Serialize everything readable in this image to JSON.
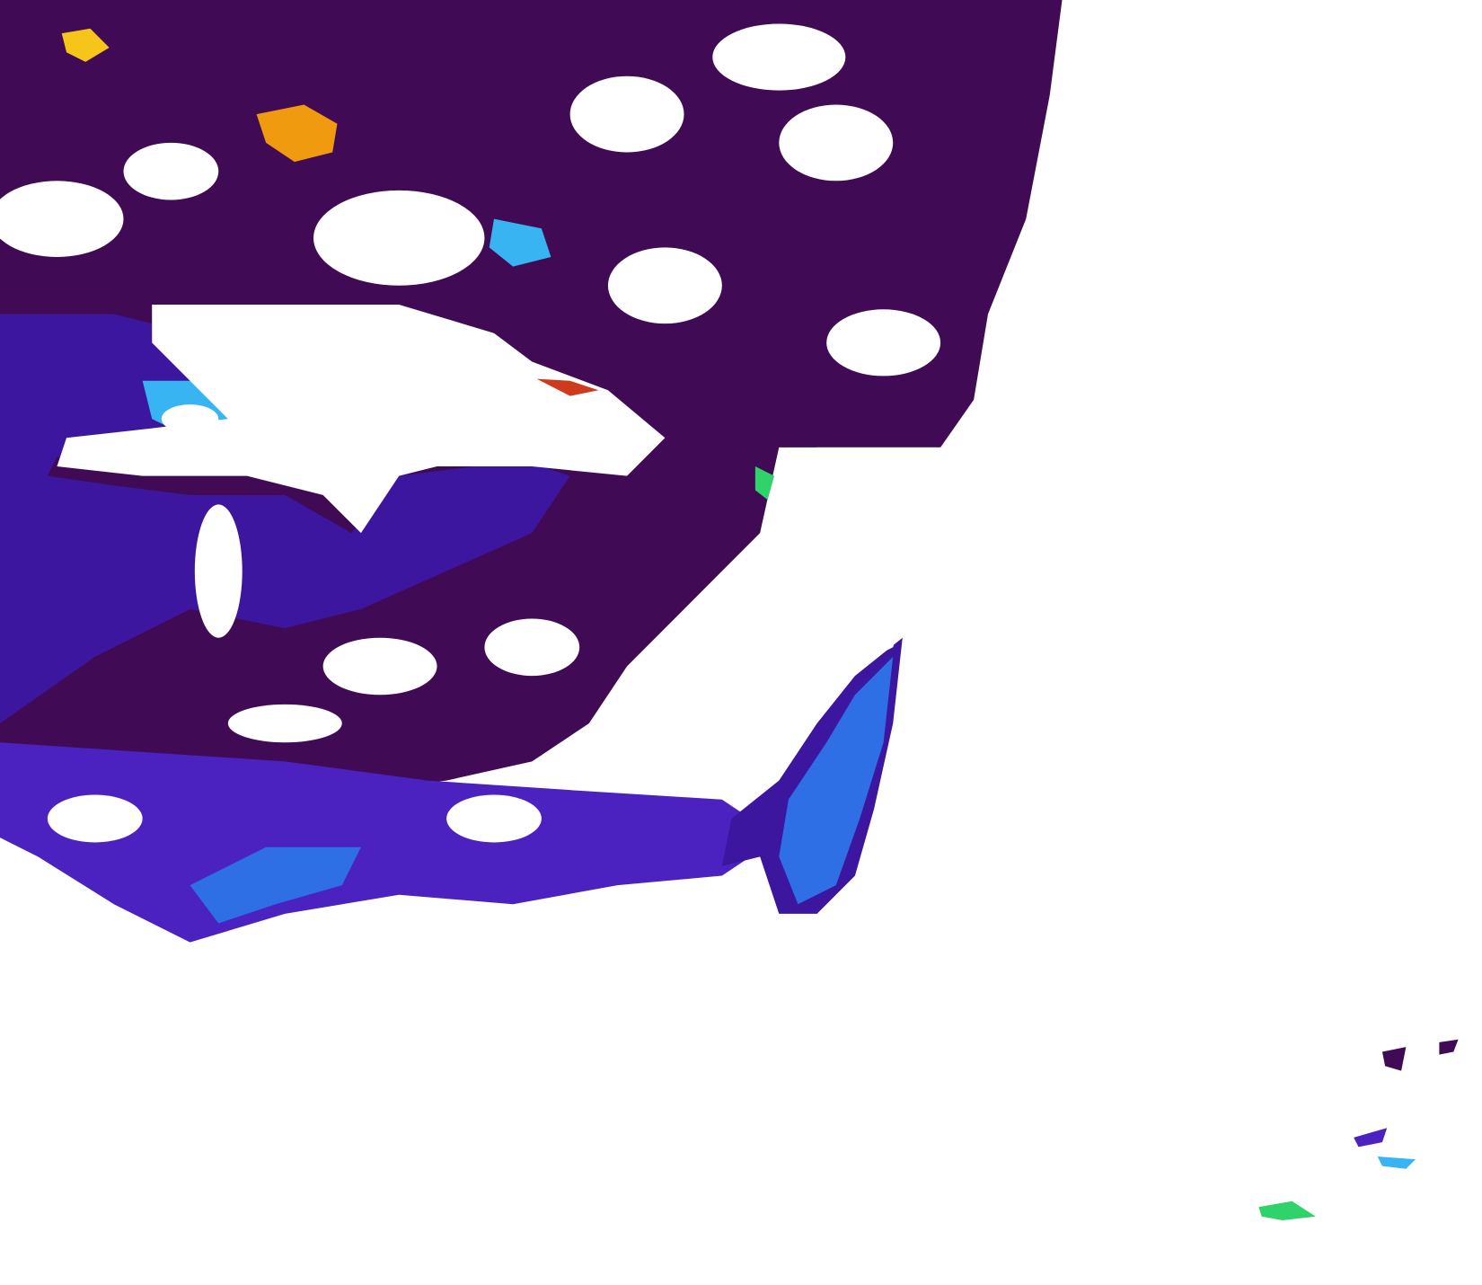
{
  "map": {
    "colors": {
      "background": "#ffffff",
      "dark": "#410a55",
      "indigo": "#3c169e",
      "violet": "#4b22c0",
      "blue": "#2f6fe6",
      "cyan": "#38b4f2",
      "green": "#2fd36a",
      "yellow": "#f6c51a",
      "orange": "#f09a10",
      "red": "#d03a1c"
    },
    "features": [
      "dark-land-mass",
      "indigo-water",
      "blue-bloom",
      "cloud-gaps",
      "warm-patches",
      "island-patches"
    ]
  }
}
